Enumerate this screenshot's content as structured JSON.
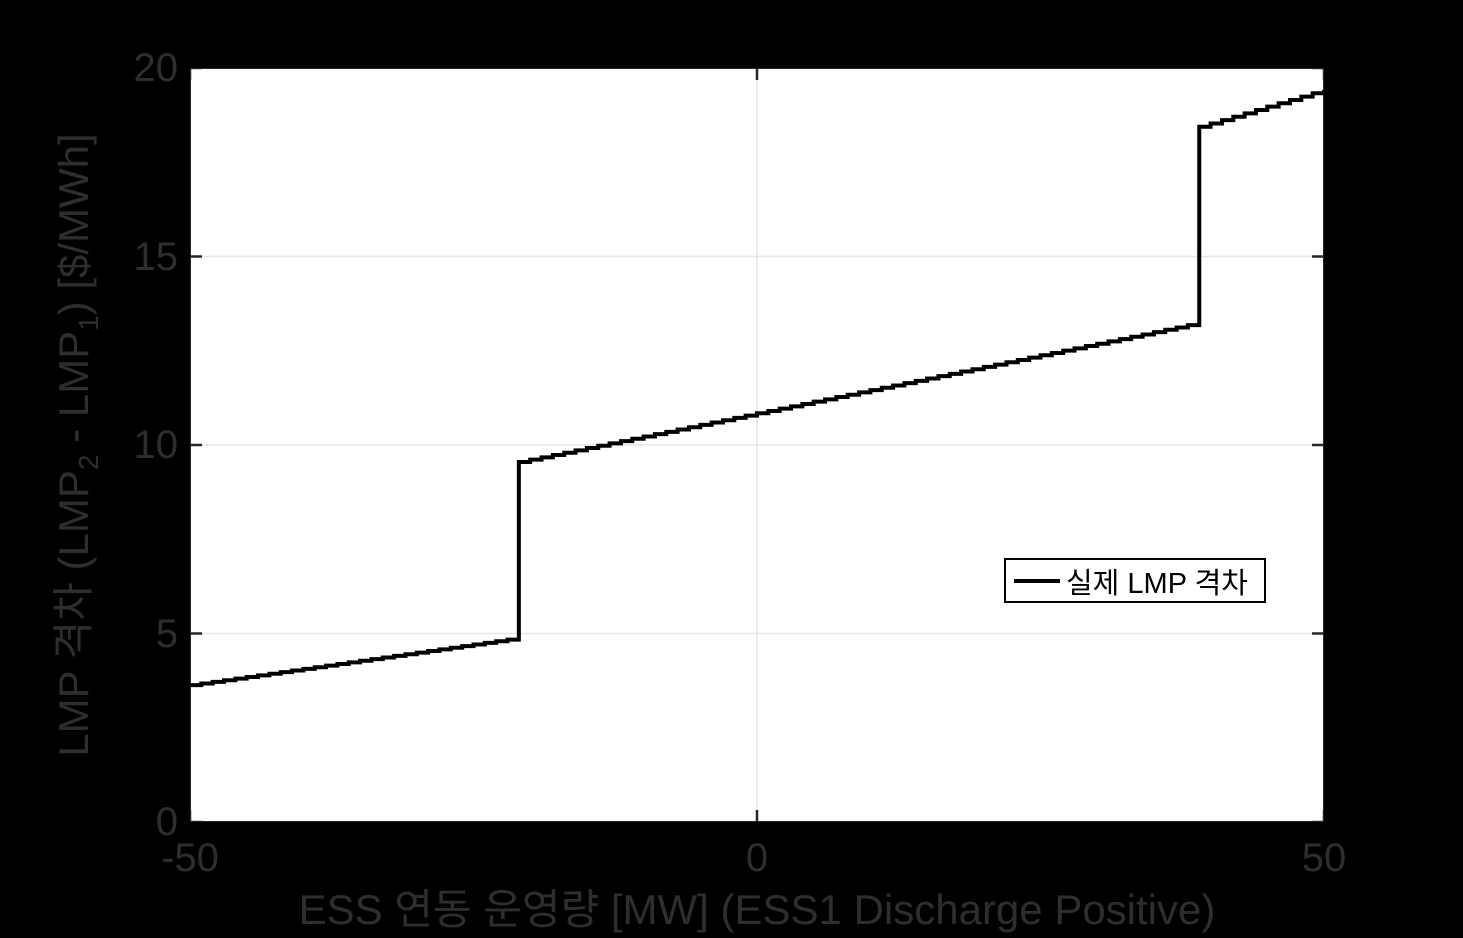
{
  "figure": {
    "background_color": "#000000",
    "plot_background_color": "#ffffff",
    "axis_text_color": "#2e2e2e",
    "grid_color": "#e6e6e6",
    "tick_color": "#262626",
    "line_color": "#000000"
  },
  "chart_data": {
    "type": "line",
    "line_style": "stairs",
    "title": "",
    "xlabel": "ESS 연동 운영량 [MW] (ESS1 Discharge Positive)",
    "ylabel": "LMP 격차 (LMP_2 - LMP_1) [$/MWh]",
    "ylabel_parts": {
      "pre": "LMP 격차 (LMP",
      "sub2": "2",
      "mid": " - LMP",
      "sub1": "1",
      "post": ") [$/MWh]"
    },
    "xlim": [
      -50,
      50
    ],
    "ylim": [
      0,
      20
    ],
    "x_ticks": [
      "-50",
      "0",
      "50"
    ],
    "x_tick_values": [
      -50,
      0,
      50
    ],
    "y_ticks": [
      "0",
      "5",
      "10",
      "15",
      "20"
    ],
    "y_tick_values": [
      0,
      5,
      10,
      15,
      20
    ],
    "x_gridlines": [
      0
    ],
    "y_gridlines": [
      5,
      10,
      15
    ],
    "grid": true,
    "legend": {
      "position": "inside-right-middle",
      "entries": [
        {
          "label": "실제 LMP 격차",
          "color": "#000000",
          "line_width": 4
        }
      ]
    },
    "series": [
      {
        "name": "실제 LMP 격차",
        "sample_step_mw": 1,
        "segments": [
          {
            "x": [
              -50,
              -21
            ],
            "y": [
              3.63,
              4.88
            ]
          },
          {
            "x": [
              -21,
              39
            ],
            "y": [
              9.55,
              13.24
            ]
          },
          {
            "x": [
              39,
              50
            ],
            "y": [
              18.44,
              19.42
            ]
          }
        ],
        "jumps": [
          {
            "x": -21,
            "from": 4.88,
            "to": 9.55
          },
          {
            "x": 39,
            "from": 13.24,
            "to": 18.44
          }
        ]
      }
    ]
  }
}
